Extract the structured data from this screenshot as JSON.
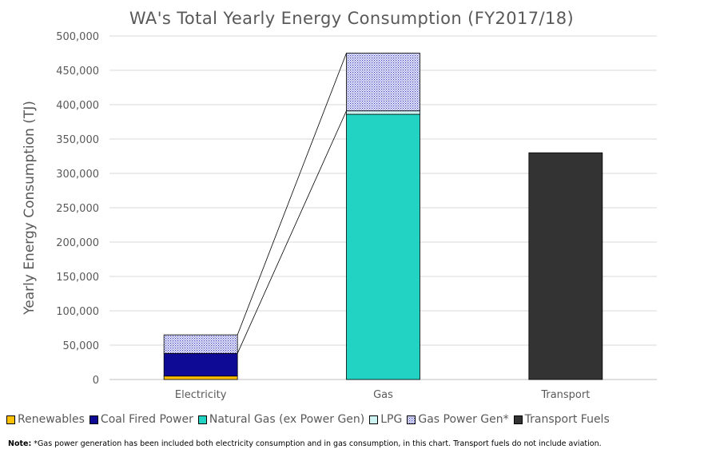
{
  "chart_data": {
    "type": "bar",
    "stacked": true,
    "title": "WA's Total Yearly Energy Consumption (FY2017/18)",
    "ylabel": "Yearly Energy Consumption (TJ)",
    "xlabel": "",
    "ylim": [
      0,
      500000
    ],
    "yticks": [
      "0",
      "50,000",
      "100,000",
      "150,000",
      "200,000",
      "250,000",
      "300,000",
      "350,000",
      "400,000",
      "450,000",
      "500,000"
    ],
    "categories": [
      "Electricity",
      "Gas",
      "Transport"
    ],
    "series": [
      {
        "name": "Renewables",
        "color": "#ffc000",
        "values": [
          5000,
          0,
          0
        ]
      },
      {
        "name": "Coal Fired Power",
        "color": "#0e0a96",
        "values": [
          33000,
          0,
          0
        ]
      },
      {
        "name": "Natural Gas (ex Power Gen)",
        "color": "#22d3c4",
        "values": [
          0,
          386000,
          0
        ]
      },
      {
        "name": "LPG",
        "color": "#cdf3f3",
        "values": [
          0,
          5000,
          0
        ]
      },
      {
        "name": "Gas Power Gen*",
        "color": "#3a3fbf",
        "pattern": "dotted",
        "values": [
          27000,
          84000,
          0
        ]
      },
      {
        "name": "Transport Fuels",
        "color": "#333333",
        "values": [
          0,
          0,
          330000
        ]
      }
    ],
    "grid": true,
    "legend_position": "bottom"
  },
  "note": {
    "label": "Note:",
    "text": " *Gas power generation has been included both electricity consumption and in gas consumption, in this chart. Transport fuels do not include aviation."
  }
}
